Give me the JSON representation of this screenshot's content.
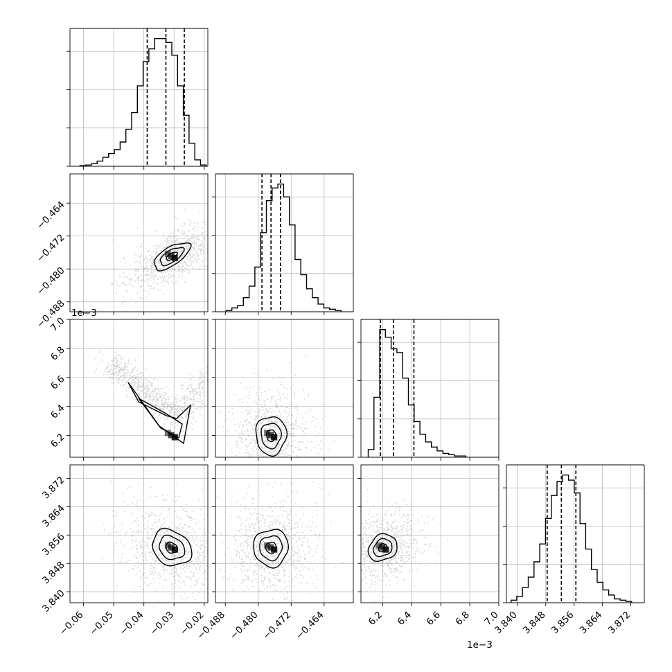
{
  "chart_data": {
    "type": "corner",
    "parameters": [
      {
        "ticks": [
          -0.06,
          -0.05,
          -0.04,
          -0.03,
          -0.02
        ],
        "tick_labels": [
          "−0.06",
          "−0.05",
          "−0.04",
          "−0.03",
          "−0.02"
        ],
        "range": [
          -0.0645,
          -0.0188
        ],
        "quantiles": [
          -0.0389,
          -0.0327,
          -0.0266
        ],
        "mode": -0.0308,
        "hist": [
          0.005,
          0.01,
          0.02,
          0.04,
          0.07,
          0.1,
          0.13,
          0.19,
          0.29,
          0.42,
          0.63,
          0.82,
          0.92,
          1.0,
          1.0,
          0.97,
          0.87,
          0.63,
          0.4,
          0.18,
          0.05,
          0.01
        ],
        "hist_start": -0.0612
      },
      {
        "ticks": [
          -0.488,
          -0.48,
          -0.472,
          -0.464
        ],
        "tick_labels": [
          "−0.488",
          "−0.480",
          "−0.472",
          "−0.464"
        ],
        "range": [
          -0.4904,
          -0.4569
        ],
        "quantiles": [
          -0.4791,
          -0.4769,
          -0.4746
        ],
        "mode": -0.4769,
        "hist": [
          0.01,
          0.03,
          0.05,
          0.11,
          0.2,
          0.35,
          0.62,
          0.87,
          0.97,
          1.0,
          0.9,
          0.68,
          0.41,
          0.29,
          0.18,
          0.11,
          0.06,
          0.03,
          0.02,
          0.01
        ],
        "hist_start": -0.4878
      },
      {
        "ticks": [
          6.2,
          6.4,
          6.6,
          6.8,
          7.0
        ],
        "tick_labels": [
          "6.2",
          "6.4",
          "6.6",
          "6.8",
          "7.0"
        ],
        "range": [
          6.05,
          7.0
        ],
        "quantiles": [
          6.184,
          6.275,
          6.415
        ],
        "mode": 6.2,
        "hist": [
          0.06,
          0.47,
          1.0,
          0.94,
          0.85,
          0.82,
          0.62,
          0.41,
          0.28,
          0.18,
          0.12,
          0.08,
          0.05,
          0.03,
          0.02,
          0.01,
          0.01
        ],
        "hist_start": 6.1
      },
      {
        "ticks": [
          3.84,
          3.848,
          3.856,
          3.864,
          3.872
        ],
        "tick_labels": [
          "3.840",
          "3.848",
          "3.856",
          "3.864",
          "3.872"
        ],
        "range": [
          3.8369,
          3.8758
        ],
        "quantiles": [
          3.8484,
          3.8524,
          3.8565
        ],
        "mode": 3.8524,
        "hist": [
          0.02,
          0.05,
          0.12,
          0.2,
          0.32,
          0.46,
          0.66,
          0.84,
          0.95,
          1.0,
          0.96,
          0.86,
          0.62,
          0.42,
          0.26,
          0.16,
          0.1,
          0.06,
          0.03,
          0.02,
          0.01
        ],
        "hist_start": 3.8382
      }
    ],
    "offset_labels": [
      "1e−3",
      "1e−3"
    ],
    "grid": true,
    "colors": {
      "hist": "#000000",
      "contour": "#000000",
      "points": "#8a8a8a",
      "grid": "#b0b0b0"
    }
  }
}
